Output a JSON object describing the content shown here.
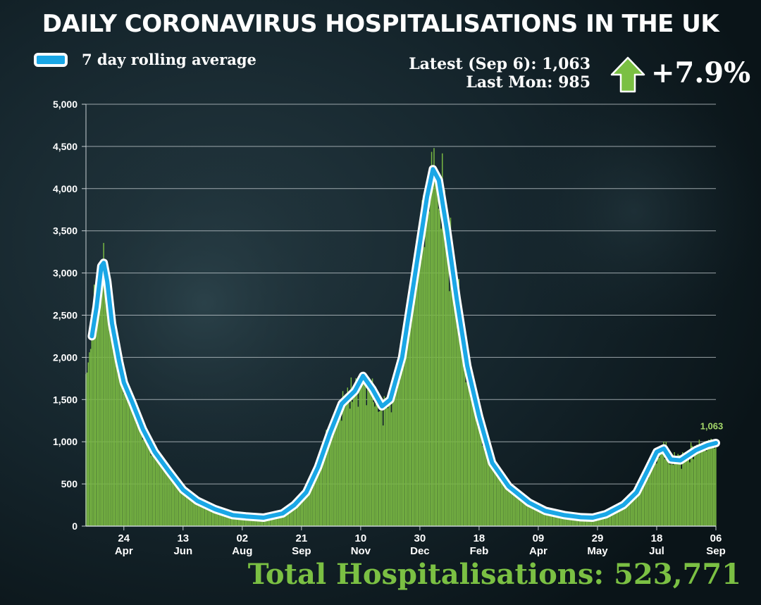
{
  "header": {
    "title": "DAILY CORONAVIRUS HOSPITALISATIONS IN THE UK",
    "latest_text": "Latest (Sep 6): 1,063",
    "last_mon_text": "Last Mon: 985",
    "change_text": "+7.9%",
    "total_text": "Total Hospitalisations: 523,771"
  },
  "colors": {
    "bars": "#79b843",
    "line": "#1aa7e6",
    "line_outline": "#ffffff",
    "background": "#0e1a20",
    "grid": "#c8d0d4",
    "arrow": "#7bc043",
    "total_text": "#7bc043",
    "annotation": "#a6d96a"
  },
  "chart_data": {
    "type": "bar",
    "title": "DAILY CORONAVIRUS HOSPITALISATIONS IN THE UK",
    "xlabel": "",
    "ylabel": "",
    "ylim": [
      0,
      5000
    ],
    "yticks": [
      0,
      500,
      1000,
      1500,
      2000,
      2500,
      3000,
      3500,
      4000,
      4500,
      5000
    ],
    "ytick_labels": [
      "0",
      "500",
      "1,000",
      "1,500",
      "2,000",
      "2,500",
      "3,000",
      "3,500",
      "4,000",
      "4,500",
      "5,000"
    ],
    "grid": true,
    "legend": "top-left",
    "x_range": [
      "2020-03-23",
      "2021-09-06"
    ],
    "x_ticks": [
      {
        "date": "2020-04-24",
        "day": "24",
        "month": "Apr"
      },
      {
        "date": "2020-06-13",
        "day": "13",
        "month": "Jun"
      },
      {
        "date": "2020-08-02",
        "day": "02",
        "month": "Aug"
      },
      {
        "date": "2020-09-21",
        "day": "21",
        "month": "Sep"
      },
      {
        "date": "2020-11-10",
        "day": "10",
        "month": "Nov"
      },
      {
        "date": "2020-12-30",
        "day": "30",
        "month": "Dec"
      },
      {
        "date": "2021-02-18",
        "day": "18",
        "month": "Feb"
      },
      {
        "date": "2021-04-09",
        "day": "09",
        "month": "Apr"
      },
      {
        "date": "2021-05-29",
        "day": "29",
        "month": "May"
      },
      {
        "date": "2021-07-18",
        "day": "18",
        "month": "Jul"
      },
      {
        "date": "2021-09-06",
        "day": "06",
        "month": "Sep"
      }
    ],
    "series": [
      {
        "name": "7 day rolling average",
        "type": "line",
        "points": [
          [
            "2020-03-28",
            2250
          ],
          [
            "2020-04-01",
            2600
          ],
          [
            "2020-04-05",
            3080
          ],
          [
            "2020-04-07",
            3120
          ],
          [
            "2020-04-10",
            2900
          ],
          [
            "2020-04-14",
            2400
          ],
          [
            "2020-04-20",
            1950
          ],
          [
            "2020-04-24",
            1700
          ],
          [
            "2020-05-01",
            1470
          ],
          [
            "2020-05-10",
            1150
          ],
          [
            "2020-05-20",
            880
          ],
          [
            "2020-06-01",
            650
          ],
          [
            "2020-06-13",
            430
          ],
          [
            "2020-06-25",
            300
          ],
          [
            "2020-07-10",
            200
          ],
          [
            "2020-07-25",
            130
          ],
          [
            "2020-08-05",
            115
          ],
          [
            "2020-08-20",
            100
          ],
          [
            "2020-09-05",
            150
          ],
          [
            "2020-09-15",
            250
          ],
          [
            "2020-09-25",
            400
          ],
          [
            "2020-10-05",
            700
          ],
          [
            "2020-10-15",
            1100
          ],
          [
            "2020-10-25",
            1450
          ],
          [
            "2020-11-05",
            1600
          ],
          [
            "2020-11-12",
            1780
          ],
          [
            "2020-11-20",
            1620
          ],
          [
            "2020-11-28",
            1420
          ],
          [
            "2020-12-05",
            1500
          ],
          [
            "2020-12-15",
            2000
          ],
          [
            "2020-12-25",
            2900
          ],
          [
            "2021-01-05",
            3900
          ],
          [
            "2021-01-10",
            4230
          ],
          [
            "2021-01-15",
            4100
          ],
          [
            "2021-01-22",
            3500
          ],
          [
            "2021-01-30",
            2700
          ],
          [
            "2021-02-08",
            1900
          ],
          [
            "2021-02-18",
            1300
          ],
          [
            "2021-03-01",
            750
          ],
          [
            "2021-03-15",
            470
          ],
          [
            "2021-04-01",
            280
          ],
          [
            "2021-04-15",
            180
          ],
          [
            "2021-05-01",
            130
          ],
          [
            "2021-05-15",
            105
          ],
          [
            "2021-05-25",
            100
          ],
          [
            "2021-06-05",
            140
          ],
          [
            "2021-06-20",
            250
          ],
          [
            "2021-07-01",
            400
          ],
          [
            "2021-07-10",
            650
          ],
          [
            "2021-07-18",
            880
          ],
          [
            "2021-07-24",
            920
          ],
          [
            "2021-07-30",
            790
          ],
          [
            "2021-08-07",
            780
          ],
          [
            "2021-08-20",
            900
          ],
          [
            "2021-08-30",
            960
          ],
          [
            "2021-09-06",
            985
          ]
        ]
      }
    ],
    "annotations": [
      {
        "date": "2021-09-06",
        "value": 1063,
        "text": "1,063"
      }
    ]
  }
}
